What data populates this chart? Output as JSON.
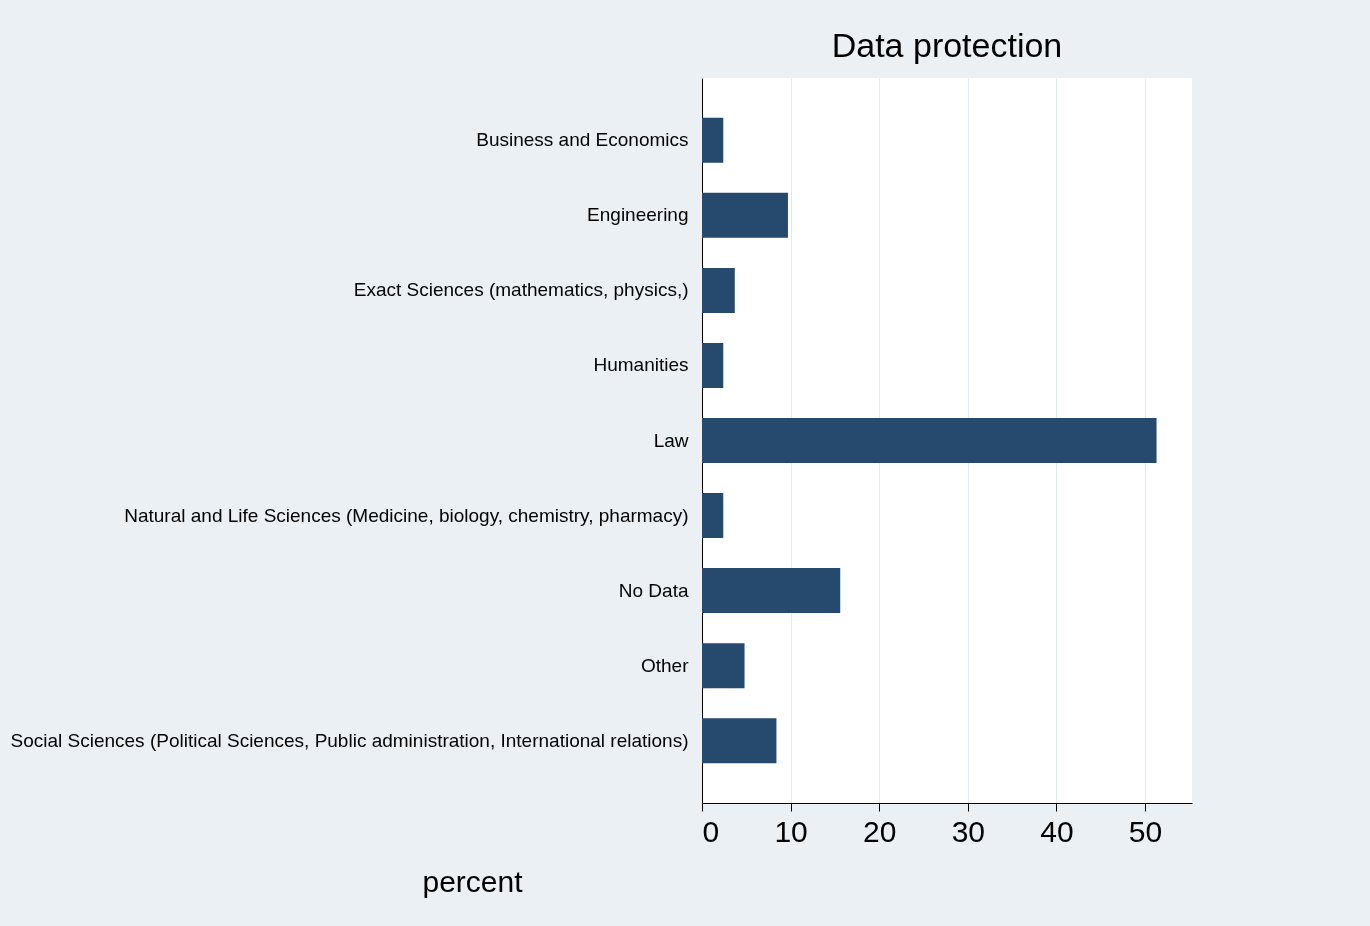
{
  "chart_data": {
    "type": "bar",
    "orientation": "horizontal",
    "title": "Data protection",
    "xlabel": "percent",
    "categories": [
      "Business and Economics",
      "Engineering",
      "Exact Sciences (mathematics, physics,)",
      "Humanities",
      "Law",
      "Natural and Life Sciences (Medicine, biology, chemistry, pharmacy)",
      "No Data",
      "Other",
      "Social Sciences (Political Sciences, Public administration, International relations)"
    ],
    "values": [
      2.4,
      9.7,
      3.7,
      2.4,
      51.3,
      2.4,
      15.6,
      4.8,
      8.4
    ],
    "color": "#264a6e",
    "xlim": [
      0,
      55.3
    ],
    "xticks": [
      0,
      10,
      20,
      30,
      40,
      50
    ],
    "grid": "x"
  }
}
